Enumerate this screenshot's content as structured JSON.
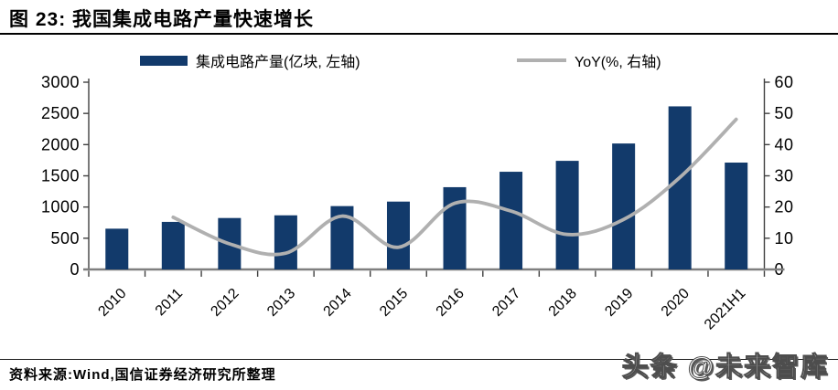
{
  "header": {
    "title": "图 23: 我国集成电路产量快速增长"
  },
  "legend": {
    "bar_label": "集成电路产量(亿块, 左轴)",
    "line_label": "YoY(%, 右轴)"
  },
  "chart_data": {
    "type": "bar",
    "title": "我国集成电路产量快速增长",
    "categories": [
      "2010",
      "2011",
      "2012",
      "2013",
      "2014",
      "2015",
      "2016",
      "2017",
      "2018",
      "2019",
      "2020",
      "2021H1"
    ],
    "series": [
      {
        "name": "集成电路产量(亿块, 左轴)",
        "chart_type": "bar",
        "axis": "left",
        "color": "#123a6b",
        "values": [
          653,
          762,
          824,
          867,
          1015,
          1087,
          1318,
          1565,
          1740,
          2018,
          2613,
          1712
        ]
      },
      {
        "name": "YoY(%, 右轴)",
        "chart_type": "line",
        "smooth": true,
        "axis": "right",
        "color": "#b0b0b0",
        "values": [
          null,
          16.7,
          8.2,
          5.2,
          17.1,
          7.1,
          21.2,
          18.7,
          11.2,
          16.0,
          29.5,
          48.1
        ]
      }
    ],
    "left_axis": {
      "min": 0,
      "max": 3000,
      "step": 500,
      "ticks": [
        "0",
        "500",
        "1000",
        "1500",
        "2000",
        "2500",
        "3000"
      ]
    },
    "right_axis": {
      "min": 0,
      "max": 60,
      "step": 10,
      "ticks": [
        "0",
        "10",
        "20",
        "30",
        "40",
        "50",
        "60"
      ]
    },
    "grid": false,
    "legend_position": "top",
    "x_label_rotation": -45
  },
  "footer": {
    "source": "资料来源:Wind,国信证券经济研究所整理",
    "watermark": "头条 @未来智库"
  },
  "colors": {
    "bar": "#123a6b",
    "line": "#b0b0b0",
    "axis": "#404040",
    "baseline": "#7f7f7f",
    "text": "#000000"
  }
}
